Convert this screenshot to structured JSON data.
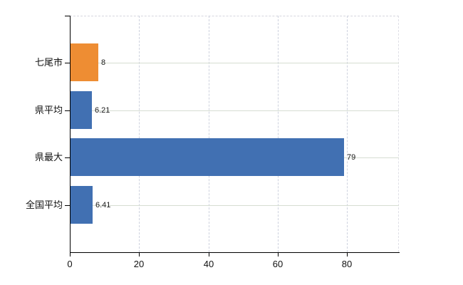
{
  "chart_data": {
    "type": "bar",
    "orientation": "horizontal",
    "title": "",
    "xlabel": "",
    "ylabel": "",
    "categories": [
      "七尾市",
      "県平均",
      "県最大",
      "全国平均"
    ],
    "values": [
      8,
      6.21,
      79,
      6.41
    ],
    "value_labels": [
      "8",
      "6.21",
      "79",
      "6.41"
    ],
    "bar_colors": [
      "#ee8d33",
      "#4170b2",
      "#4170b2",
      "#4170b2"
    ],
    "x_ticks": [
      0,
      20,
      40,
      60,
      80
    ],
    "x_tick_labels": [
      "0",
      "20",
      "40",
      "60",
      "80"
    ],
    "xlim": [
      0,
      95
    ],
    "grid": true,
    "legend": false,
    "colors": {
      "bar_default": "#4170b2",
      "bar_highlight": "#ee8d33",
      "axis": "#000000",
      "grid_horizontal": "#d6ddd2",
      "grid_vertical": "#ced2de",
      "plot_border_dashed": "#d6d6de",
      "text": "#1a1a1a",
      "background": "#ffffff"
    }
  }
}
